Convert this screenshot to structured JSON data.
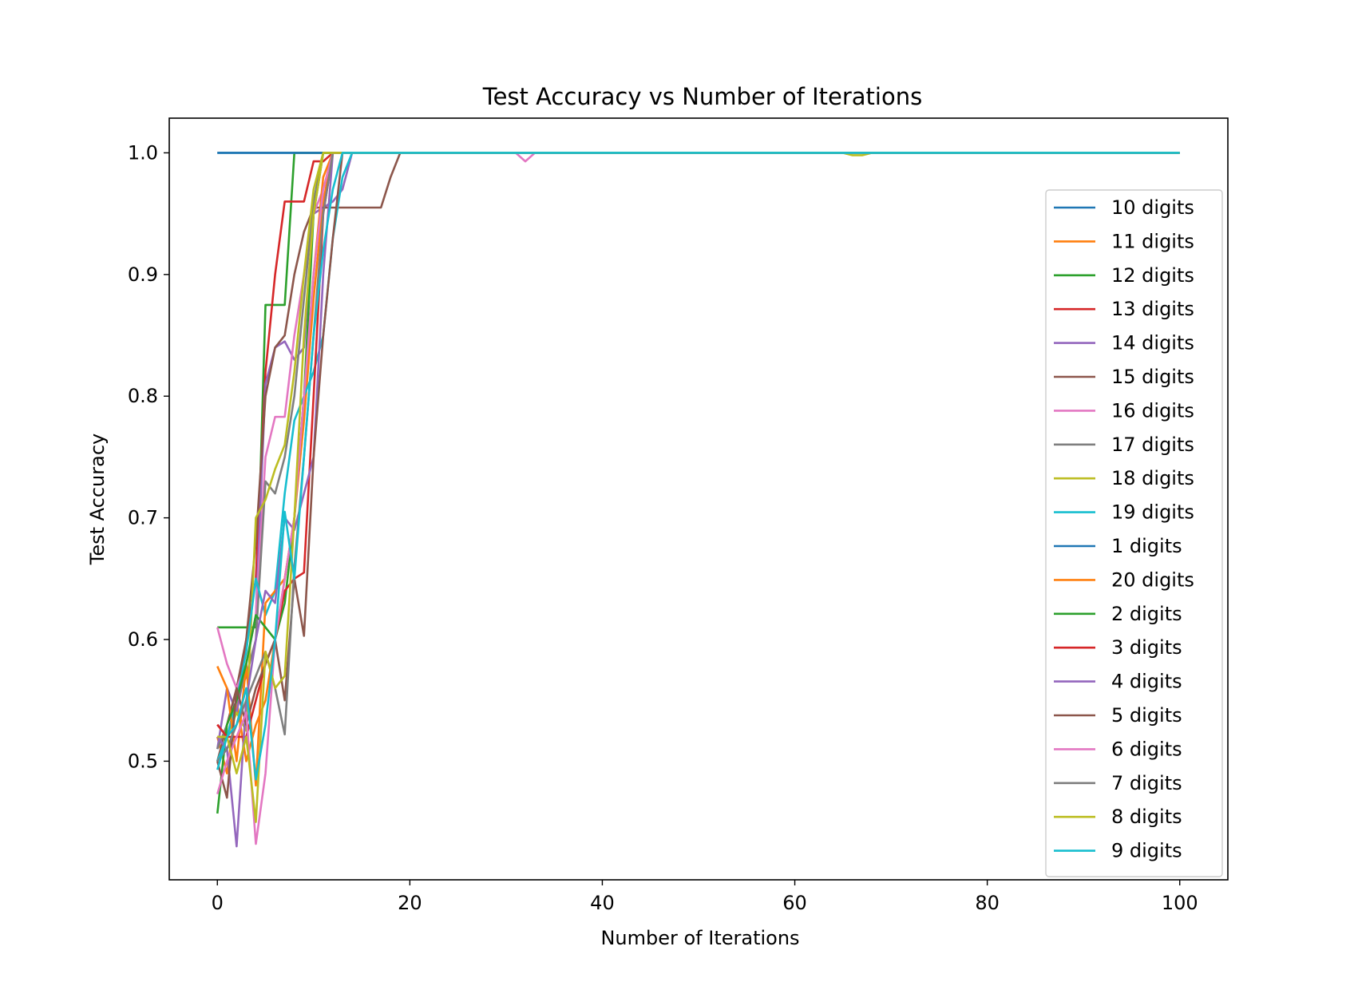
{
  "chart_data": {
    "type": "line",
    "title": "Test Accuracy vs Number of Iterations",
    "xlabel": "Number of Iterations",
    "ylabel": "Test Accuracy",
    "xlim": [
      -5,
      105
    ],
    "ylim": [
      0.4025,
      1.0285
    ],
    "xticks": [
      0,
      20,
      40,
      60,
      80,
      100
    ],
    "yticks": [
      0.5,
      0.6,
      0.7,
      0.8,
      0.9,
      1.0
    ],
    "xtick_labels": [
      "0",
      "20",
      "40",
      "60",
      "80",
      "100"
    ],
    "ytick_labels": [
      "0.5",
      "0.6",
      "0.7",
      "0.8",
      "0.9",
      "1.0"
    ],
    "grid": false,
    "legend_position": "right",
    "x": {
      "start": 0,
      "end": 100,
      "step": 1
    },
    "series": [
      {
        "name": "10 digits",
        "color": "#1f77b4",
        "values": [
          1.0,
          1.0,
          1.0,
          1.0,
          1.0,
          1.0,
          1.0,
          1.0,
          1.0,
          1.0,
          1.0,
          1.0,
          1.0,
          1.0,
          1.0,
          1.0
        ]
      },
      {
        "name": "11 digits",
        "color": "#ff7f0e",
        "values": [
          0.52,
          0.49,
          0.55,
          0.5,
          0.53,
          0.55,
          0.6,
          0.65,
          0.7,
          0.78,
          0.88,
          0.96,
          1.0,
          1.0,
          1.0,
          1.0
        ]
      },
      {
        "name": "12 digits",
        "color": "#2ca02c",
        "values": [
          0.61,
          0.61,
          0.61,
          0.61,
          0.61,
          0.875,
          0.875,
          0.875,
          1.0,
          1.0,
          1.0,
          1.0,
          1.0,
          1.0,
          1.0,
          1.0
        ]
      },
      {
        "name": "13 digits",
        "color": "#d62728",
        "values": [
          0.53,
          0.52,
          0.55,
          0.6,
          0.65,
          0.82,
          0.9,
          0.96,
          0.96,
          0.96,
          0.993,
          0.993,
          1.0,
          1.0,
          1.0,
          1.0
        ]
      },
      {
        "name": "14 digits",
        "color": "#9467bd",
        "values": [
          0.51,
          0.56,
          0.54,
          0.58,
          0.62,
          0.81,
          0.84,
          0.845,
          0.83,
          0.84,
          0.95,
          0.955,
          0.96,
          0.97,
          1.0,
          1.0
        ]
      },
      {
        "name": "15 digits",
        "color": "#8c564b",
        "values": [
          0.5,
          0.53,
          0.56,
          0.6,
          0.68,
          0.8,
          0.84,
          0.85,
          0.9,
          0.935,
          0.955,
          0.955,
          0.955,
          0.955,
          0.955,
          0.955,
          0.955,
          0.955,
          0.98,
          1.0,
          1.0
        ]
      },
      {
        "name": "16 digits",
        "color": "#e377c2",
        "values": [
          0.61,
          0.58,
          0.56,
          0.58,
          0.62,
          0.75,
          0.783,
          0.783,
          0.85,
          0.9,
          0.95,
          0.97,
          1.0,
          1.0,
          1.0,
          1.0,
          1.0,
          1.0,
          1.0,
          1.0,
          1.0,
          1.0,
          1.0,
          1.0,
          1.0,
          1.0,
          1.0,
          1.0,
          1.0,
          1.0,
          1.0,
          1.0,
          0.993,
          1.0,
          1.0
        ]
      },
      {
        "name": "17 digits",
        "color": "#7f7f7f",
        "values": [
          0.51,
          0.53,
          0.55,
          0.57,
          0.6,
          0.73,
          0.72,
          0.75,
          0.8,
          0.88,
          0.96,
          1.0,
          1.0,
          1.0,
          1.0,
          1.0
        ]
      },
      {
        "name": "18 digits",
        "color": "#bcbd22",
        "values": [
          0.52,
          0.52,
          0.54,
          0.525,
          0.7,
          0.715,
          0.74,
          0.76,
          0.82,
          0.9,
          0.97,
          1.0,
          1.0,
          1.0,
          1.0,
          1.0,
          1.0,
          1.0,
          1.0,
          1.0,
          1.0,
          1.0,
          1.0,
          1.0,
          1.0,
          1.0,
          1.0,
          1.0,
          1.0,
          1.0,
          1.0,
          1.0,
          1.0,
          1.0,
          1.0,
          1.0,
          1.0,
          1.0,
          1.0,
          1.0,
          1.0,
          1.0,
          1.0,
          1.0,
          1.0,
          1.0,
          1.0,
          1.0,
          1.0,
          1.0,
          1.0,
          1.0,
          1.0,
          1.0,
          1.0,
          1.0,
          1.0,
          1.0,
          1.0,
          1.0,
          1.0,
          1.0,
          1.0,
          1.0,
          1.0,
          1.0,
          0.998,
          0.998,
          1.0,
          1.0
        ]
      },
      {
        "name": "19 digits",
        "color": "#17becf",
        "values": [
          0.5,
          0.52,
          0.55,
          0.59,
          0.65,
          0.62,
          0.64,
          0.72,
          0.78,
          0.8,
          0.82,
          0.85,
          0.93,
          0.98,
          1.0,
          1.0
        ]
      },
      {
        "name": "1 digits",
        "color": "#1f77b4",
        "values": [
          1.0,
          1.0,
          1.0,
          1.0,
          1.0,
          1.0,
          1.0,
          1.0,
          1.0,
          1.0,
          1.0,
          1.0,
          1.0,
          1.0,
          1.0,
          1.0,
          1.0,
          1.0,
          1.0,
          1.0,
          1.0,
          1.0,
          1.0,
          1.0,
          1.0,
          1.0,
          1.0,
          1.0,
          1.0,
          1.0,
          1.0,
          1.0,
          1.0,
          1.0,
          1.0,
          1.0,
          1.0,
          1.0,
          1.0,
          1.0,
          1.0,
          1.0,
          1.0,
          1.0,
          1.0,
          1.0,
          1.0,
          1.0,
          1.0,
          1.0,
          1.0,
          1.0,
          1.0,
          1.0,
          1.0,
          1.0,
          1.0,
          1.0,
          1.0,
          1.0,
          1.0,
          1.0,
          1.0,
          1.0,
          1.0,
          1.0,
          1.0,
          1.0,
          1.0,
          1.0,
          1.0,
          1.0,
          1.0,
          1.0,
          1.0,
          1.0,
          1.0,
          1.0,
          1.0,
          1.0,
          1.0,
          1.0,
          1.0,
          1.0,
          1.0,
          1.0,
          1.0,
          1.0,
          1.0,
          1.0,
          1.0,
          1.0,
          1.0,
          1.0,
          1.0,
          1.0,
          1.0,
          1.0,
          1.0,
          1.0,
          1.0
        ]
      },
      {
        "name": "20 digits",
        "color": "#ff7f0e",
        "values": [
          0.578,
          0.56,
          0.5,
          0.58,
          0.48,
          0.63,
          0.64,
          0.65,
          0.7,
          0.8,
          0.9,
          0.98,
          1.0,
          1.0,
          1.0,
          1.0
        ]
      },
      {
        "name": "2 digits",
        "color": "#2ca02c",
        "values": [
          0.457,
          0.53,
          0.55,
          0.58,
          0.62,
          0.61,
          0.6,
          0.63,
          0.7,
          0.8,
          0.95,
          1.0,
          1.0,
          1.0,
          1.0,
          1.0
        ]
      },
      {
        "name": "3 digits",
        "color": "#d62728",
        "values": [
          0.53,
          0.52,
          0.52,
          0.52,
          0.55,
          0.58,
          0.6,
          0.64,
          0.65,
          0.655,
          0.8,
          0.95,
          1.0,
          1.0,
          1.0,
          1.0
        ]
      },
      {
        "name": "4 digits",
        "color": "#9467bd",
        "values": [
          0.52,
          0.51,
          0.43,
          0.55,
          0.6,
          0.64,
          0.63,
          0.7,
          0.69,
          0.72,
          0.75,
          0.9,
          1.0,
          1.0,
          1.0,
          1.0
        ]
      },
      {
        "name": "5 digits",
        "color": "#8c564b",
        "values": [
          0.5,
          0.47,
          0.56,
          0.53,
          0.56,
          0.58,
          0.6,
          0.55,
          0.65,
          0.603,
          0.75,
          0.85,
          0.93,
          1.0,
          1.0,
          1.0
        ]
      },
      {
        "name": "6 digits",
        "color": "#e377c2",
        "values": [
          0.473,
          0.5,
          0.52,
          0.54,
          0.432,
          0.49,
          0.6,
          0.65,
          0.7,
          0.8,
          0.9,
          0.97,
          1.0,
          1.0,
          1.0,
          1.0
        ]
      },
      {
        "name": "7 digits",
        "color": "#7f7f7f",
        "values": [
          0.5,
          0.51,
          0.53,
          0.55,
          0.57,
          0.59,
          0.56,
          0.522,
          0.66,
          0.75,
          0.85,
          0.95,
          1.0,
          1.0,
          1.0,
          1.0
        ]
      },
      {
        "name": "8 digits",
        "color": "#bcbd22",
        "values": [
          0.52,
          0.52,
          0.49,
          0.52,
          0.45,
          0.59,
          0.56,
          0.57,
          0.7,
          0.85,
          0.95,
          1.0,
          1.0,
          1.0,
          1.0,
          1.0
        ]
      },
      {
        "name": "9 digits",
        "color": "#17becf",
        "values": [
          0.493,
          0.52,
          0.53,
          0.56,
          0.485,
          0.53,
          0.6,
          0.705,
          0.65,
          0.75,
          0.85,
          0.92,
          0.97,
          1.0,
          1.0,
          1.0
        ]
      }
    ]
  }
}
